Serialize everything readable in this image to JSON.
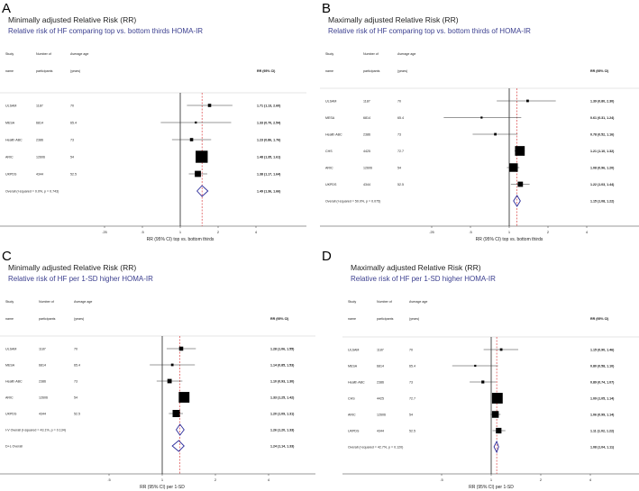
{
  "colors": {
    "diamond": "#2b2b9a",
    "ref_line": "#d62728",
    "title2": "#3b3f8f"
  },
  "headers": {
    "study1": "Study",
    "study2": "name",
    "n1": "Number of",
    "n2": "participants",
    "age1": "Average age",
    "age2": "(years)",
    "rr": "RR (95% CI)"
  },
  "chart_data": [
    {
      "type": "forest",
      "letter": "A",
      "title": "Minimally adjusted Relative Risk (RR)",
      "subtitle": "Relative risk of HF comparing top vs. bottom thirds HOMA-IR",
      "xlabel": "RR (95% CI) top vs. bottom thirds",
      "xscale": "log",
      "ticks": [
        0.25,
        0.5,
        1,
        2,
        4
      ],
      "tick_labels": [
        ".25",
        ".5",
        "1",
        "2",
        "4"
      ],
      "studies": [
        {
          "name": "ULSAM",
          "n": "1187",
          "age": "70",
          "rr": 1.71,
          "lo": 1.13,
          "hi": 2.6,
          "weight": 5,
          "label": "1.71 (1.13, 2.60)"
        },
        {
          "name": "MESA",
          "n": "6814",
          "age": "65.4",
          "rr": 1.33,
          "lo": 0.7,
          "hi": 2.54,
          "weight": 2,
          "label": "1.33 (0.70, 2.54)"
        },
        {
          "name": "Health ABC",
          "n": "2386",
          "age": "73",
          "rr": 1.23,
          "lo": 0.86,
          "hi": 1.76,
          "weight": 5,
          "label": "1.23 (0.86, 1.76)"
        },
        {
          "name": "ARIC",
          "n": "12606",
          "age": "54",
          "rr": 1.48,
          "lo": 1.35,
          "hi": 1.61,
          "weight": 70,
          "label": "1.48 (1.35, 1.61)"
        },
        {
          "name": "UKPDS",
          "n": "4344",
          "age": "52.5",
          "rr": 1.38,
          "lo": 1.17,
          "hi": 1.64,
          "weight": 18,
          "label": "1.38 (1.17, 1.64)"
        }
      ],
      "overall": [
        {
          "name": "Overall  (I-squared = 0.0%, p = 0.743)",
          "rr": 1.49,
          "lo": 1.36,
          "hi": 1.66,
          "label": "1.49 (1.36, 1.66)"
        }
      ]
    },
    {
      "type": "forest",
      "letter": "B",
      "title": "Maximally adjusted Relative Risk (RR)",
      "subtitle": "Relative risk of HF comparing top vs. bottom thirds of HOMA-IR",
      "xlabel": "RR (95% CI) top vs. bottom thirds",
      "xscale": "log",
      "ticks": [
        0.25,
        0.5,
        1,
        2,
        4
      ],
      "tick_labels": [
        ".25",
        ".5",
        "1",
        "2",
        "4"
      ],
      "studies": [
        {
          "name": "ULSAM",
          "n": "1187",
          "age": "70",
          "rr": 1.39,
          "lo": 0.8,
          "hi": 2.3,
          "weight": 3,
          "label": "1.39 (0.80, 2.30)"
        },
        {
          "name": "MESA",
          "n": "6814",
          "age": "65.4",
          "rr": 0.61,
          "lo": 0.31,
          "hi": 1.24,
          "weight": 1,
          "label": "0.61 (0.31, 1.24)"
        },
        {
          "name": "Health ABC",
          "n": "2386",
          "age": "73",
          "rr": 0.78,
          "lo": 0.52,
          "hi": 1.16,
          "weight": 3,
          "label": "0.78 (0.52, 1.16)"
        },
        {
          "name": "CHS",
          "n": "4425",
          "age": "72.7",
          "rr": 1.21,
          "lo": 1.1,
          "hi": 1.32,
          "weight": 45,
          "label": "1.21 (1.10, 1.32)"
        },
        {
          "name": "ARIC",
          "n": "12606",
          "age": "54",
          "rr": 1.08,
          "lo": 0.96,
          "hi": 1.2,
          "weight": 35,
          "label": "1.08 (0.96, 1.20)"
        },
        {
          "name": "UKPDS",
          "n": "4344",
          "age": "52.5",
          "rr": 1.22,
          "lo": 1.03,
          "hi": 1.44,
          "weight": 13,
          "label": "1.22 (1.03, 1.44)"
        }
      ],
      "overall": [
        {
          "name": "Overall  (I-squared = 50.0%, p = 0.075)",
          "rr": 1.15,
          "lo": 1.08,
          "hi": 1.22,
          "label": "1.15 (1.08, 1.22)"
        }
      ]
    },
    {
      "type": "forest",
      "letter": "C",
      "title": "Minimally adjusted Relative Risk (RR)",
      "subtitle": "Relative risk of HF per 1-SD higher HOMA-IR",
      "xlabel": "RR (95% CI) per 1-SD",
      "xscale": "log",
      "ticks": [
        0.5,
        1,
        2,
        4
      ],
      "tick_labels": [
        ".5",
        "1",
        "2",
        "4"
      ],
      "studies": [
        {
          "name": "ULSAM",
          "n": "1187",
          "age": "70",
          "rr": 1.28,
          "lo": 1.06,
          "hi": 1.55,
          "weight": 8,
          "label": "1.28 (1.06, 1.55)"
        },
        {
          "name": "MESA",
          "n": "6814",
          "age": "65.4",
          "rr": 1.14,
          "lo": 0.85,
          "hi": 1.53,
          "weight": 3,
          "label": "1.14 (0.85, 1.53)"
        },
        {
          "name": "Health ABC",
          "n": "2386",
          "age": "73",
          "rr": 1.1,
          "lo": 0.93,
          "hi": 1.3,
          "weight": 9,
          "label": "1.10 (0.93, 1.30)"
        },
        {
          "name": "ARIC",
          "n": "12606",
          "age": "54",
          "rr": 1.33,
          "lo": 1.25,
          "hi": 1.42,
          "weight": 55,
          "label": "1.33 (1.25, 1.42)"
        },
        {
          "name": "UKPDS",
          "n": "4344",
          "age": "52.5",
          "rr": 1.2,
          "lo": 1.09,
          "hi": 1.31,
          "weight": 25,
          "label": "1.20 (1.09, 1.31)"
        }
      ],
      "overall": [
        {
          "name": "I-V Overall  (I-squared = 43.1%, p = 0.134)",
          "rr": 1.26,
          "lo": 1.2,
          "hi": 1.33,
          "label": "1.26 (1.20, 1.33)"
        },
        {
          "name": "D+L Overall",
          "rr": 1.24,
          "lo": 1.14,
          "hi": 1.33,
          "label": "1.24 (1.14, 1.33)"
        }
      ]
    },
    {
      "type": "forest",
      "letter": "D",
      "title": "Maximally adjusted Relative Risk (RR)",
      "subtitle": "Relative risk of HF per 1-SD higher HOMA-IR",
      "xlabel": "RR (95% CI) per 1-SD",
      "xscale": "log",
      "ticks": [
        0.5,
        1,
        2,
        4
      ],
      "tick_labels": [
        ".5",
        "1",
        "2",
        "4"
      ],
      "studies": [
        {
          "name": "ULSAM",
          "n": "1187",
          "age": "70",
          "rr": 1.15,
          "lo": 0.9,
          "hi": 1.46,
          "weight": 3,
          "label": "1.15 (0.90, 1.46)"
        },
        {
          "name": "MESA",
          "n": "6814",
          "age": "65.4",
          "rr": 0.8,
          "lo": 0.58,
          "hi": 1.1,
          "weight": 1,
          "label": "0.80 (0.58, 1.10)"
        },
        {
          "name": "Health ABC",
          "n": "2386",
          "age": "73",
          "rr": 0.89,
          "lo": 0.74,
          "hi": 1.07,
          "weight": 4,
          "label": "0.89 (0.74, 1.07)"
        },
        {
          "name": "CHS",
          "n": "4425",
          "age": "72.7",
          "rr": 1.09,
          "lo": 1.05,
          "hi": 1.14,
          "weight": 55,
          "label": "1.09 (1.05, 1.14)"
        },
        {
          "name": "ARIC",
          "n": "12606",
          "age": "54",
          "rr": 1.06,
          "lo": 0.99,
          "hi": 1.14,
          "weight": 22,
          "label": "1.06 (0.99, 1.14)"
        },
        {
          "name": "UKPDS",
          "n": "4344",
          "age": "52.5",
          "rr": 1.11,
          "lo": 1.02,
          "hi": 1.22,
          "weight": 15,
          "label": "1.11 (1.02, 1.22)"
        }
      ],
      "overall": [
        {
          "name": "Overall  (I-squared = 42.7%, p = 0.120)",
          "rr": 1.08,
          "lo": 1.04,
          "hi": 1.11,
          "label": "1.08 (1.04, 1.11)"
        }
      ]
    }
  ]
}
